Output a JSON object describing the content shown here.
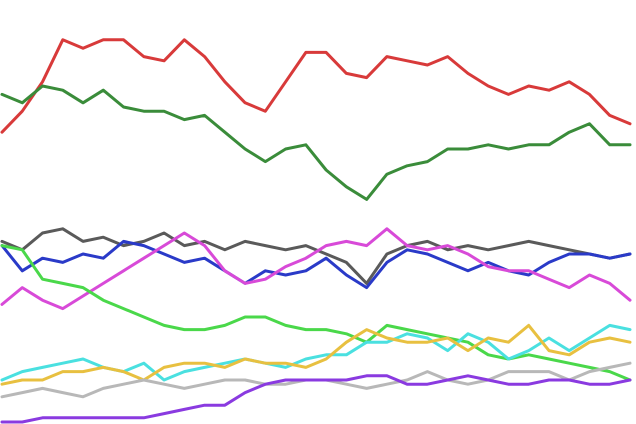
{
  "chart_data": {
    "type": "line",
    "x": [
      0,
      1,
      2,
      3,
      4,
      5,
      6,
      7,
      8,
      9,
      10,
      11,
      12,
      13,
      14,
      15,
      16,
      17,
      18,
      19,
      20,
      21,
      22,
      23,
      24,
      25,
      26,
      27,
      28,
      29,
      30,
      31
    ],
    "xlim": [
      0,
      31
    ],
    "ylim": [
      0,
      100
    ],
    "series": [
      {
        "color": "#d83a3a",
        "values": [
          69,
          74,
          81,
          91,
          89,
          91,
          91,
          87,
          86,
          91,
          87,
          81,
          76,
          74,
          81,
          88,
          88,
          83,
          82,
          87,
          86,
          85,
          87,
          83,
          80,
          78,
          80,
          79,
          81,
          78,
          73,
          71
        ]
      },
      {
        "color": "#3a8c3a",
        "values": [
          78,
          76,
          80,
          79,
          76,
          79,
          75,
          74,
          74,
          72,
          73,
          69,
          65,
          62,
          65,
          66,
          60,
          56,
          53,
          59,
          61,
          62,
          65,
          65,
          66,
          65,
          66,
          66,
          69,
          71,
          66,
          66
        ]
      },
      {
        "color": "#5a5a5a",
        "values": [
          43,
          41,
          45,
          46,
          43,
          44,
          42,
          43,
          45,
          42,
          43,
          41,
          43,
          42,
          41,
          42,
          40,
          38,
          33,
          40,
          42,
          43,
          41,
          42,
          41,
          42,
          43,
          42,
          41,
          40,
          39,
          40
        ]
      },
      {
        "color": "#2a3ac8",
        "values": [
          42,
          36,
          39,
          38,
          40,
          39,
          43,
          42,
          40,
          38,
          39,
          36,
          33,
          36,
          35,
          36,
          39,
          35,
          32,
          38,
          41,
          40,
          38,
          36,
          38,
          36,
          35,
          38,
          40,
          40,
          39,
          40
        ]
      },
      {
        "color": "#d84ad8",
        "values": [
          28,
          32,
          29,
          27,
          30,
          33,
          36,
          39,
          42,
          45,
          42,
          36,
          33,
          34,
          37,
          39,
          42,
          43,
          42,
          46,
          42,
          41,
          42,
          40,
          37,
          36,
          36,
          34,
          32,
          35,
          33,
          29
        ]
      },
      {
        "color": "#4ad84a",
        "values": [
          42,
          41,
          34,
          33,
          32,
          29,
          27,
          25,
          23,
          22,
          22,
          23,
          25,
          25,
          23,
          22,
          22,
          21,
          19,
          23,
          22,
          21,
          20,
          19,
          16,
          15,
          16,
          15,
          14,
          13,
          12,
          10
        ]
      },
      {
        "color": "#4ae0e0",
        "values": [
          10,
          12,
          13,
          14,
          15,
          13,
          12,
          14,
          10,
          12,
          13,
          14,
          15,
          14,
          13,
          15,
          16,
          16,
          19,
          19,
          21,
          20,
          17,
          21,
          19,
          15,
          17,
          20,
          17,
          20,
          23,
          22
        ]
      },
      {
        "color": "#e8c040",
        "values": [
          9,
          10,
          10,
          12,
          12,
          13,
          12,
          10,
          13,
          14,
          14,
          13,
          15,
          14,
          14,
          13,
          15,
          19,
          22,
          20,
          19,
          19,
          20,
          17,
          20,
          19,
          23,
          17,
          16,
          19,
          20,
          19
        ]
      },
      {
        "color": "#b8b8b8",
        "values": [
          6,
          7,
          8,
          7,
          6,
          8,
          9,
          10,
          9,
          8,
          9,
          10,
          10,
          9,
          9,
          10,
          10,
          9,
          8,
          9,
          10,
          12,
          10,
          9,
          10,
          12,
          12,
          12,
          10,
          12,
          13,
          14
        ]
      },
      {
        "color": "#8a3ae0",
        "values": [
          0,
          0,
          1,
          1,
          1,
          1,
          1,
          1,
          2,
          3,
          4,
          4,
          7,
          9,
          10,
          10,
          10,
          10,
          11,
          11,
          9,
          9,
          10,
          11,
          10,
          9,
          9,
          10,
          10,
          9,
          9,
          10
        ]
      }
    ]
  }
}
